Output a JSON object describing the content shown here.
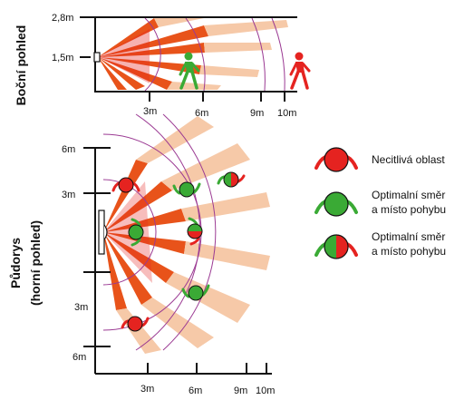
{
  "side_view": {
    "title": "Boční pohled",
    "y_labels": [
      "2,8m",
      "1,5m"
    ],
    "x_labels": [
      "3m",
      "6m",
      "9m",
      "10m"
    ]
  },
  "top_view": {
    "title_line1": "Půdorys",
    "title_line2": "(horní pohled)",
    "y_labels": [
      "6m",
      "3m",
      "3m",
      "6m"
    ],
    "x_labels": [
      "3m",
      "6m",
      "9m",
      "10m"
    ]
  },
  "legend": [
    {
      "line1": "Necitlivá oblast",
      "line2": "",
      "fill": "red"
    },
    {
      "line1": "Optimalní směr",
      "line2": "a místo pohybu",
      "fill": "green"
    },
    {
      "line1": "Optimalní směr",
      "line2": "a místo pohybu",
      "fill": "split"
    }
  ],
  "colors": {
    "beam_dark": "#e8531a",
    "beam_light": "#f6c9a8",
    "range_arc": "#9b3a93",
    "red_figure": "#e52320",
    "green_figure": "#3aaa35"
  }
}
